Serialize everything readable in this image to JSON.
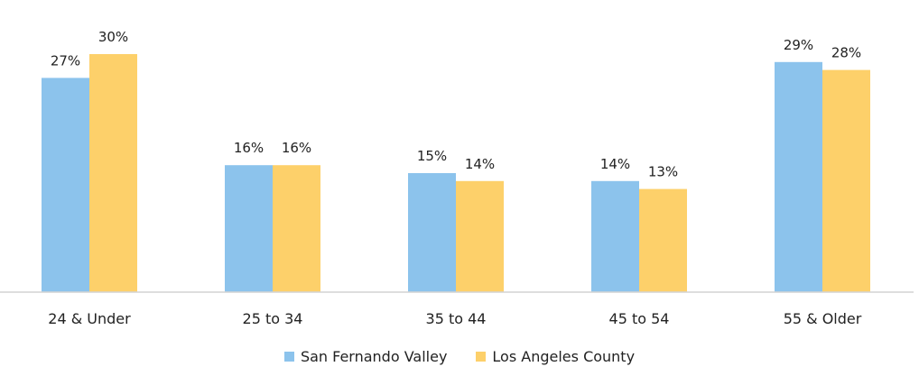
{
  "chart_data": {
    "type": "bar",
    "title": "",
    "xlabel": "",
    "ylabel": "",
    "ylim": [
      0,
      32
    ],
    "grid": false,
    "legend_position": "bottom",
    "categories": [
      "24 & Under",
      "25 to 34",
      "35 to 44",
      "45 to 54",
      "55 & Older"
    ],
    "series": [
      {
        "name": "San Fernando Valley",
        "color": "#8CC3EC",
        "values": [
          27,
          16,
          15,
          14,
          29
        ],
        "labels": [
          "27%",
          "16%",
          "15%",
          "14%",
          "29%"
        ]
      },
      {
        "name": "Los Angeles County",
        "color": "#FDD06A",
        "values": [
          30,
          16,
          14,
          13,
          28
        ],
        "labels": [
          "30%",
          "16%",
          "14%",
          "13%",
          "28%"
        ]
      }
    ]
  }
}
